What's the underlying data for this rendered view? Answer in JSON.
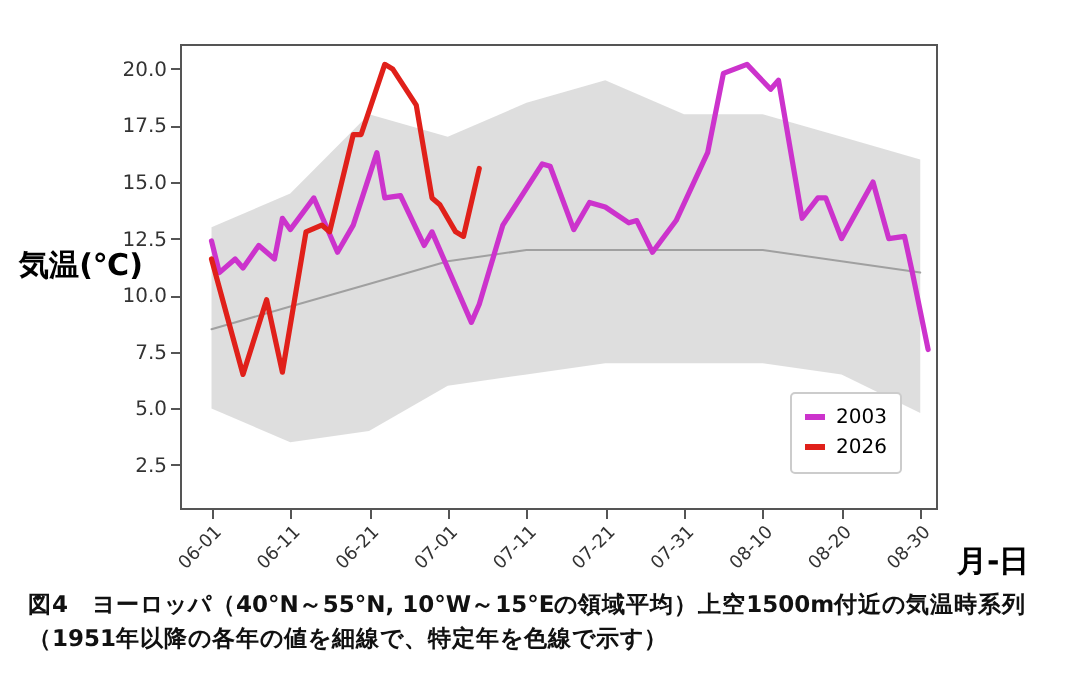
{
  "chart_data": {
    "type": "line",
    "ylabel": "気温(℃)",
    "xlabel": "月-日",
    "annotations": [
      "図4　ヨーロッパ（40°N～55°N, 10°W～15°Eの領域平均）上空1500m付近の気温時系列（1951年以降の各年の値を細線で、特定年を色線で示す）"
    ],
    "xlim": [
      "--05-28",
      "--09-01"
    ],
    "xticks": [
      {
        "value": "--06-01",
        "label": "06-01"
      },
      {
        "value": "--06-11",
        "label": "06-11"
      },
      {
        "value": "--06-21",
        "label": "06-21"
      },
      {
        "value": "--07-01",
        "label": "07-01"
      },
      {
        "value": "--07-11",
        "label": "07-11"
      },
      {
        "value": "--07-21",
        "label": "07-21"
      },
      {
        "value": "--07-31",
        "label": "07-31"
      },
      {
        "value": "--08-10",
        "label": "08-10"
      },
      {
        "value": "--08-20",
        "label": "08-20"
      },
      {
        "value": "--08-30",
        "label": "08-30"
      }
    ],
    "ylim": [
      0.6,
      21.1
    ],
    "yticks": [
      {
        "value": 2.5,
        "label": "2.5"
      },
      {
        "value": 5,
        "label": "5.0"
      },
      {
        "value": 7.5,
        "label": "7.5"
      },
      {
        "value": 10,
        "label": "10.0"
      },
      {
        "value": 12.5,
        "label": "12.5"
      },
      {
        "value": 15,
        "label": "15.0"
      },
      {
        "value": 17.5,
        "label": "17.5"
      },
      {
        "value": 20,
        "label": "20.0"
      }
    ],
    "legend": "bottom right",
    "grid": false,
    "series": [
      {
        "color": "#a0a0a0",
        "x": [
          "--06-01",
          "--06-11",
          "--06-21",
          "--07-01",
          "--07-11",
          "--07-21",
          "--07-31",
          "--08-10",
          "--08-20",
          "--08-30"
        ],
        "values": [
          8.5,
          9.5,
          10.5,
          11.5,
          12,
          12,
          12,
          12,
          11.5,
          11
        ],
        "lower": [
          5,
          3.5,
          4,
          6,
          6.5,
          7,
          7,
          7,
          6.5,
          4.8
        ],
        "upper": [
          13,
          14.5,
          18,
          17,
          18.5,
          19.5,
          18,
          18,
          17,
          16
        ]
      },
      {
        "name": "2003",
        "color": "#cc33cc",
        "x": [
          "--06-01",
          "--06-02",
          "--06-04",
          "--06-05",
          "--06-07",
          "--06-09",
          "--06-10",
          "--06-11",
          "--06-14",
          "--06-17",
          "--06-19",
          "--06-22",
          "--06-23",
          "--06-25",
          "--06-28",
          "--06-29",
          "--07-04",
          "--07-05",
          "--07-08",
          "--07-13",
          "--07-14",
          "--07-17",
          "--07-19",
          "--07-21",
          "--07-24",
          "--07-25",
          "--07-27",
          "--07-30",
          "--08-03",
          "--08-05",
          "--08-08",
          "--08-11",
          "--08-12",
          "--08-15",
          "--08-17",
          "--08-18",
          "--08-20",
          "--08-24",
          "--08-26",
          "--08-28",
          "--08-29",
          "--08-31"
        ],
        "values": [
          12.4,
          11.0,
          11.6,
          11.2,
          12.2,
          11.6,
          13.4,
          12.9,
          14.3,
          11.9,
          13.1,
          16.3,
          14.3,
          14.4,
          12.2,
          12.8,
          8.8,
          9.6,
          13.1,
          15.8,
          15.7,
          12.9,
          14.1,
          13.9,
          13.2,
          13.3,
          11.9,
          13.3,
          16.3,
          19.8,
          20.2,
          19.1,
          19.5,
          13.4,
          14.3,
          14.3,
          12.5,
          15.0,
          12.5,
          12.6,
          11.0,
          7.6
        ]
      },
      {
        "name": "2026",
        "color": "#e0201a",
        "x": [
          "--06-01",
          "--06-05",
          "--06-08",
          "--06-10",
          "--06-13",
          "--06-15",
          "--06-16",
          "--06-19",
          "--06-20",
          "--06-23",
          "--06-24",
          "--06-27",
          "--06-29",
          "--06-30",
          "--07-02",
          "--07-03",
          "--07-05"
        ],
        "values": [
          11.6,
          6.5,
          9.8,
          6.6,
          12.8,
          13.1,
          12.8,
          17.1,
          17.1,
          20.2,
          20.0,
          18.4,
          14.3,
          14.0,
          12.8,
          12.6,
          15.6
        ]
      }
    ]
  }
}
